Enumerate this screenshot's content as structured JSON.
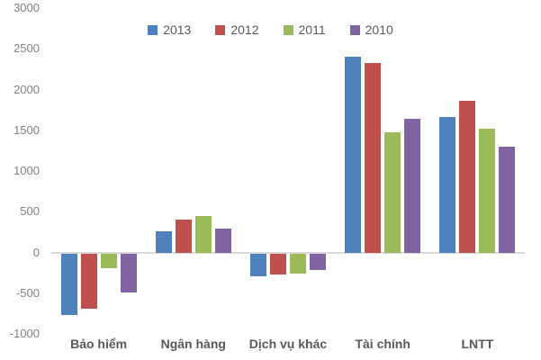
{
  "chart_data": {
    "type": "bar",
    "title": "",
    "xlabel": "",
    "ylabel": "",
    "categories": [
      "Bảo hiểm",
      "Ngân hàng",
      "Dịch vụ khác",
      "Tài chính",
      "LNTT"
    ],
    "series": [
      {
        "name": "2013",
        "color": "#4F81BD",
        "values": [
          -750,
          260,
          -275,
          2400,
          1665
        ]
      },
      {
        "name": "2012",
        "color": "#C0504D",
        "values": [
          -680,
          400,
          -255,
          2325,
          1865
        ]
      },
      {
        "name": "2011",
        "color": "#9BBB59",
        "values": [
          -175,
          445,
          -245,
          1475,
          1515
        ]
      },
      {
        "name": "2010",
        "color": "#8064A2",
        "values": [
          -480,
          295,
          -205,
          1645,
          1300
        ]
      }
    ],
    "ylim": [
      -1000,
      3000
    ],
    "y_ticks": [
      3000,
      2500,
      2000,
      1500,
      1000,
      500,
      0,
      -500,
      -1000
    ],
    "y_tick_labels": [
      "3000",
      "2500",
      "2000",
      "1500",
      "1000",
      "500",
      "0",
      "-500",
      "-1000"
    ],
    "grid": "off",
    "zero_axis_line": true,
    "legend_position": "top-center",
    "colors": {
      "background": "#FFFFFF",
      "axis_tick_text": "#808080",
      "category_text": "#595959",
      "legend_text": "#595959",
      "zero_line": "#D9D9D9"
    }
  }
}
